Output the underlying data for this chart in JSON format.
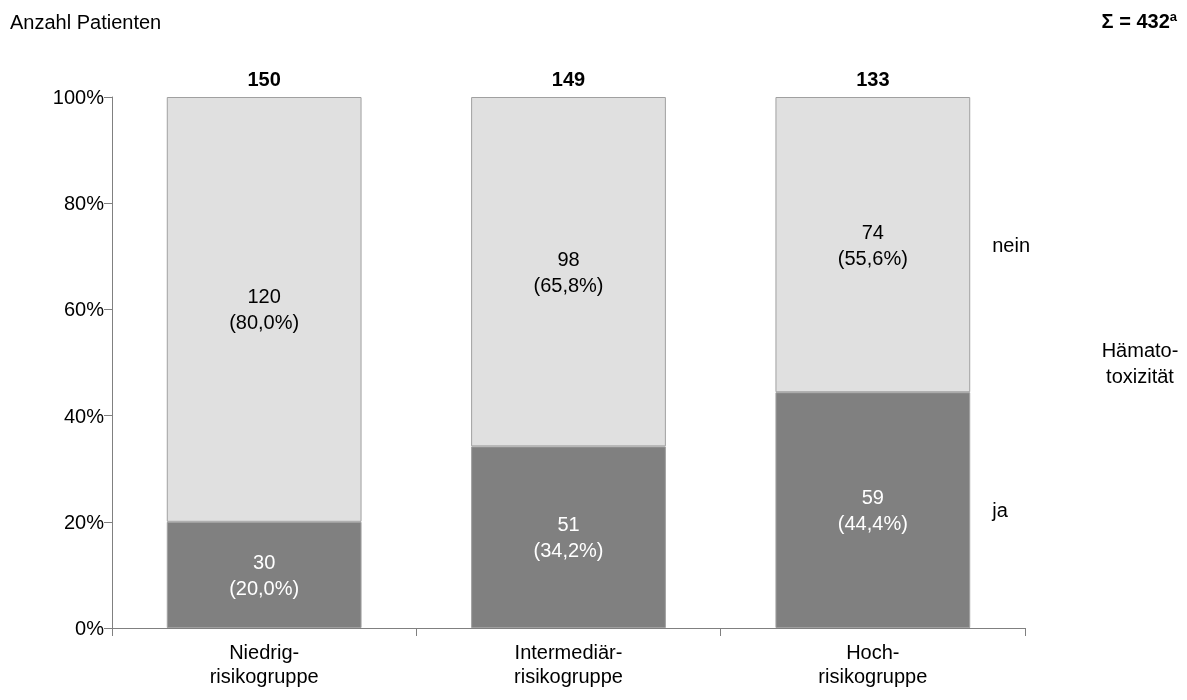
{
  "chart_data": {
    "type": "bar",
    "stacked": true,
    "ylabel": "Anzahl Patienten",
    "legend_title": "Hämato-\ntoxizität",
    "legend": "right",
    "grid": false,
    "annotations": [
      "Σ = 432$^{a}$",
      {
        "text": "150",
        "x": "Niedrig-\nrisikogruppe",
        "y": 100
      },
      {
        "text": "149",
        "x": "Intermediär-\nrisikogruppe",
        "y": 100
      },
      {
        "text": "133",
        "x": "Hoch-\nrisikogruppe",
        "y": 100
      }
    ],
    "categories": [
      "Niedrig-\nrisikogruppe",
      "Intermediär-\nrisikogruppe",
      "Hoch-\nrisikogruppe"
    ],
    "series": [
      {
        "name": "ja",
        "color": "#808080",
        "values": [
          20.0,
          34.2,
          44.4
        ],
        "value_labels": [
          "30\n(20,0%)",
          "51\n(34,2%)",
          "59\n(44,4%)"
        ]
      },
      {
        "name": "nein",
        "color": "#e0e0e0",
        "values": [
          80.0,
          65.8,
          55.6
        ],
        "value_labels": [
          "120\n(80,0%)",
          "98\n(65,8%)",
          "74\n(55,6%)"
        ]
      }
    ],
    "ylim": [
      0,
      100
    ],
    "yticks": [
      {
        "value": 0,
        "label": "0%"
      },
      {
        "value": 20,
        "label": "20%"
      },
      {
        "value": 40,
        "label": "40%"
      },
      {
        "value": 60,
        "label": "60%"
      },
      {
        "value": 80,
        "label": "80%"
      },
      {
        "value": 100,
        "label": "100%"
      }
    ]
  }
}
